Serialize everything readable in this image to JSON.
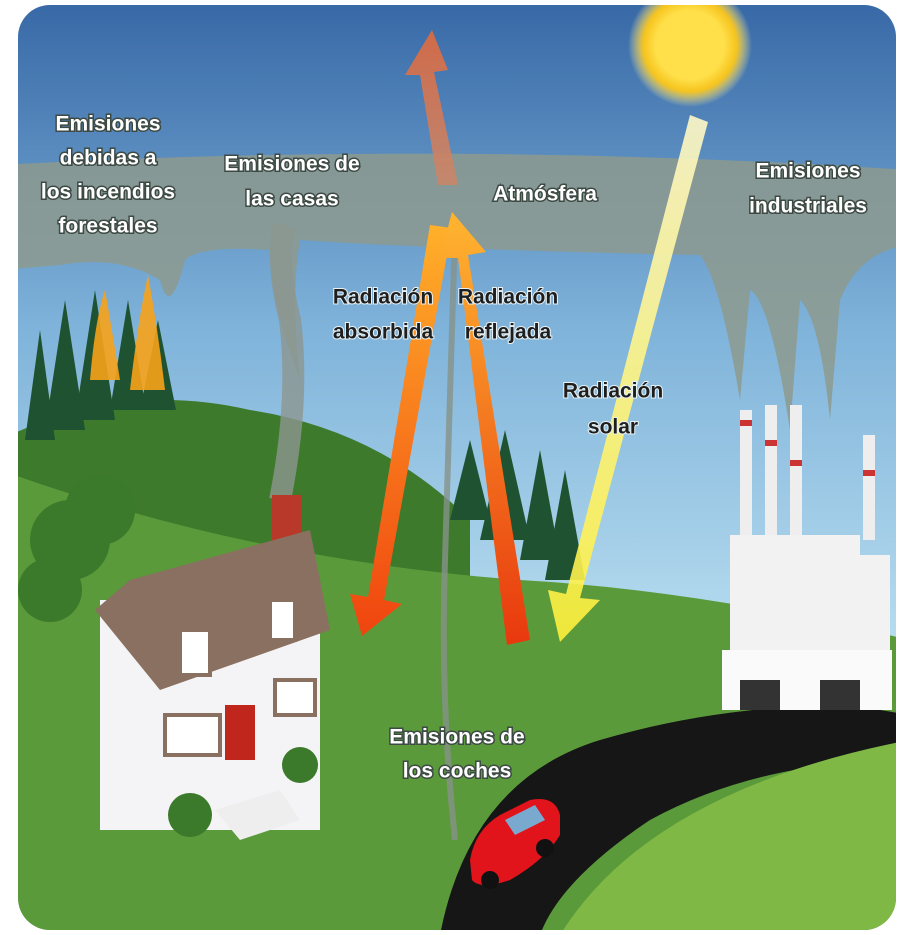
{
  "labels": [
    {
      "lines": [
        "Emisiones",
        "debidas a",
        "los incendios",
        "forestales"
      ]
    },
    {
      "lines": [
        "Emisiones de",
        "las casas"
      ]
    },
    {
      "lines": [
        "Atmósfera"
      ]
    },
    {
      "lines": [
        "Emisiones",
        "industriales"
      ]
    },
    {
      "lines": [
        "Radiación",
        "absorbida"
      ]
    },
    {
      "lines": [
        "Radiación",
        "reflejada"
      ]
    },
    {
      "lines": [
        "Radiación",
        "solar"
      ]
    },
    {
      "lines": [
        "Emisiones de",
        "los coches"
      ]
    }
  ]
}
